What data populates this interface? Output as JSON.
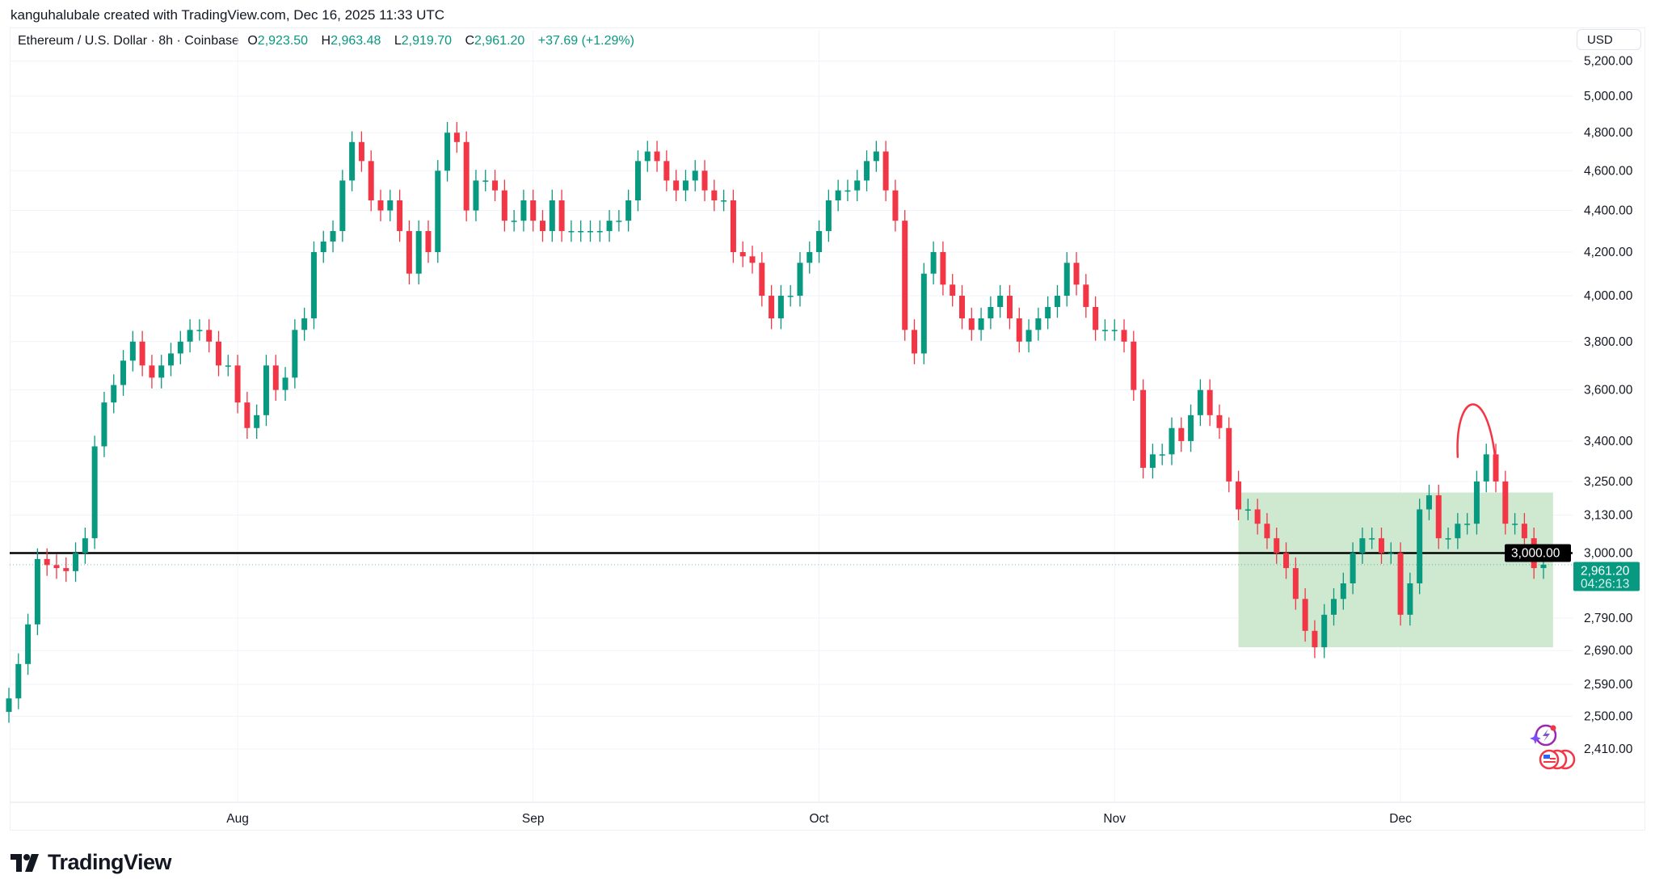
{
  "credit": "kanguhalubale created with TradingView.com, Dec 16, 2025 11:33 UTC",
  "legend": {
    "symbol": "Ethereum / U.S. Dollar · 8h · Coinbase",
    "open_label": "O",
    "open": "2,923.50",
    "high_label": "H",
    "high": "2,963.48",
    "low_label": "L",
    "low": "2,919.70",
    "close_label": "C",
    "close": "2,961.20",
    "change": "+37.69 (+1.29%)"
  },
  "currency_button": "USD",
  "brand": "TradingView",
  "colors": {
    "up": "#089981",
    "down": "#f23645",
    "zone": "#cfe8d0",
    "level_line": "#000000",
    "annotation": "#f23645"
  },
  "icons": [
    "tradingview-logo-icon",
    "lightning-icon",
    "us-flag-events-icon"
  ],
  "chart_data": {
    "type": "candlestick",
    "y_scale": "log",
    "ylim": [
      2350,
      5250
    ],
    "grid": true,
    "y_ticks": [
      "5,200.00",
      "5,000.00",
      "4,800.00",
      "4,600.00",
      "4,400.00",
      "4,200.00",
      "4,000.00",
      "3,800.00",
      "3,600.00",
      "3,400.00",
      "3,250.00",
      "3,130.00",
      "3,000.00",
      "2,790.00",
      "2,690.00",
      "2,590.00",
      "2,500.00",
      "2,410.00"
    ],
    "y_tick_values": [
      5200,
      5000,
      4800,
      4600,
      4400,
      4200,
      4000,
      3800,
      3600,
      3400,
      3250,
      3130,
      3000,
      2790,
      2690,
      2590,
      2500,
      2410
    ],
    "x_ticks": [
      {
        "label": "Aug",
        "date": "2025-08-01"
      },
      {
        "label": "Sep",
        "date": "2025-09-01"
      },
      {
        "label": "Oct",
        "date": "2025-10-01"
      },
      {
        "label": "Nov",
        "date": "2025-11-01"
      },
      {
        "label": "Dec",
        "date": "2025-12-01"
      }
    ],
    "daily_closes_by_month": [
      {
        "month": "2025-07",
        "first_day": 8,
        "closes": [
          2550,
          2650,
          2770,
          2980,
          2960,
          2950,
          2940,
          3000,
          3050,
          3380,
          3550,
          3620,
          3720,
          3800,
          3700,
          3650,
          3700,
          3750,
          3800,
          3850,
          3850,
          3800,
          3700,
          3700
        ]
      },
      {
        "month": "2025-08",
        "first_day": 1,
        "closes": [
          3550,
          3450,
          3500,
          3700,
          3600,
          3650,
          3850,
          3900,
          4200,
          4250,
          4300,
          4550,
          4750,
          4650,
          4450,
          4400,
          4450,
          4300,
          4100,
          4300,
          4200,
          4600,
          4800,
          4750,
          4400,
          4550,
          4550,
          4500,
          4350,
          4350,
          4450
        ]
      },
      {
        "month": "2025-09",
        "first_day": 1,
        "closes": [
          4350,
          4300,
          4450,
          4300,
          4300,
          4300,
          4300,
          4300,
          4350,
          4350,
          4450,
          4650,
          4700,
          4650,
          4550,
          4500,
          4550,
          4600,
          4500,
          4450,
          4450,
          4200,
          4180,
          4150,
          4000,
          3900,
          4000,
          4000,
          4150,
          4200
        ]
      },
      {
        "month": "2025-10",
        "first_day": 1,
        "closes": [
          4300,
          4450,
          4500,
          4500,
          4550,
          4650,
          4700,
          4500,
          4350,
          3850,
          3750,
          4100,
          4200,
          4050,
          4000,
          3900,
          3850,
          3900,
          3950,
          4000,
          3900,
          3800,
          3850,
          3900,
          3950,
          4000,
          4150,
          4050,
          3950,
          3850,
          3850
        ]
      },
      {
        "month": "2025-11",
        "first_day": 1,
        "closes": [
          3850,
          3800,
          3600,
          3300,
          3350,
          3350,
          3450,
          3400,
          3500,
          3600,
          3500,
          3450,
          3250,
          3150,
          3150,
          3100,
          3050,
          3000,
          2950,
          2850,
          2750,
          2700,
          2800,
          2850,
          2900,
          3000,
          3050,
          3050,
          3000,
          3000
        ]
      },
      {
        "month": "2025-12",
        "first_day": 1,
        "closes": [
          2800,
          2900,
          3150,
          3200,
          3050,
          3050,
          3100,
          3100,
          3250,
          3350,
          3250,
          3100,
          3100,
          3050,
          2950,
          2961.2
        ]
      }
    ],
    "horizontal_level": {
      "value": 3000,
      "label": "3,000.00"
    },
    "last_price": {
      "value": 2961.2,
      "label": "2,961.20",
      "countdown": "04:26:13"
    },
    "zone": {
      "from_date": "2025-11-14",
      "to_date": "2025-12-17",
      "low": 2700,
      "high": 3210
    },
    "arc_annotation": {
      "from_date": "2025-12-07",
      "to_date": "2025-12-11",
      "low": 3340,
      "top": 3560
    }
  }
}
